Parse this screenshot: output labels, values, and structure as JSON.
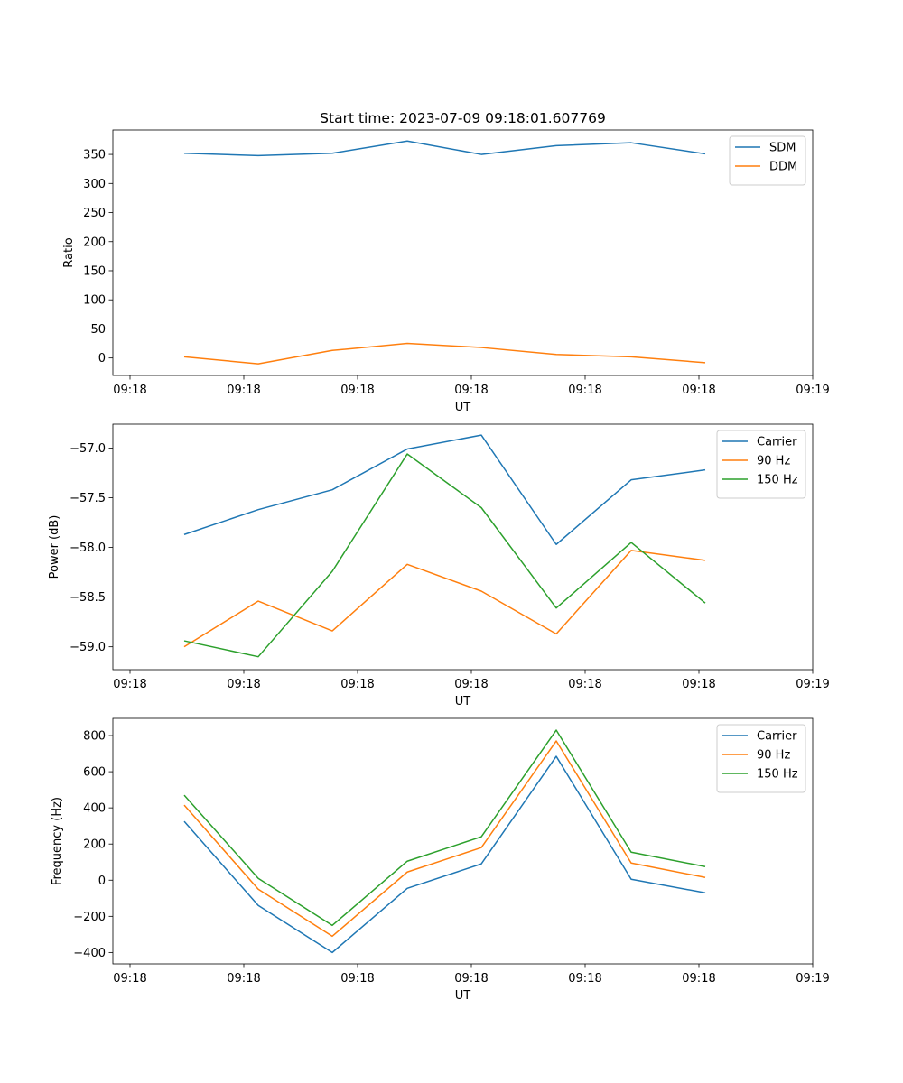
{
  "chart_data": [
    {
      "type": "line",
      "title": "Start time: 2023-07-09 09:18:01.607769",
      "xlabel": "UT",
      "ylabel": "Ratio",
      "x_tick_labels": [
        "09:18",
        "09:18",
        "09:18",
        "09:18",
        "09:18",
        "09:18",
        "09:19"
      ],
      "y_ticks": [
        0,
        50,
        100,
        150,
        200,
        250,
        300,
        350
      ],
      "y_tick_labels": [
        "0",
        "50",
        "100",
        "150",
        "200",
        "250",
        "300",
        "350"
      ],
      "ylim": [
        -30,
        392
      ],
      "legend_position": "top-right",
      "series": [
        {
          "name": "SDM",
          "color": "#1f77b4",
          "values": [
            352,
            348,
            352,
            373,
            350,
            365,
            370,
            351
          ]
        },
        {
          "name": "DDM",
          "color": "#ff7f0e",
          "values": [
            2,
            -10,
            13,
            25,
            18,
            6,
            2,
            -8
          ]
        }
      ]
    },
    {
      "type": "line",
      "title": "",
      "xlabel": "UT",
      "ylabel": "Power (dB)",
      "x_tick_labels": [
        "09:18",
        "09:18",
        "09:18",
        "09:18",
        "09:18",
        "09:18",
        "09:19"
      ],
      "y_ticks": [
        -59.0,
        -58.5,
        -58.0,
        -57.5,
        -57.0
      ],
      "y_tick_labels": [
        "−59.0",
        "−58.5",
        "−58.0",
        "−57.5",
        "−57.0"
      ],
      "ylim": [
        -59.23,
        -56.76
      ],
      "legend_position": "top-right",
      "series": [
        {
          "name": "Carrier",
          "color": "#1f77b4",
          "values": [
            -57.87,
            -57.62,
            -57.42,
            -57.01,
            -56.87,
            -57.97,
            -57.32,
            -57.22
          ]
        },
        {
          "name": "90 Hz",
          "color": "#ff7f0e",
          "values": [
            -59.0,
            -58.54,
            -58.84,
            -58.17,
            -58.44,
            -58.87,
            -58.03,
            -58.13
          ]
        },
        {
          "name": "150 Hz",
          "color": "#2ca02c",
          "values": [
            -58.94,
            -59.1,
            -58.24,
            -57.06,
            -57.6,
            -58.61,
            -57.95,
            -58.56
          ]
        }
      ]
    },
    {
      "type": "line",
      "title": "",
      "xlabel": "UT",
      "ylabel": "Frequency (Hz)",
      "x_tick_labels": [
        "09:18",
        "09:18",
        "09:18",
        "09:18",
        "09:18",
        "09:18",
        "09:19"
      ],
      "y_ticks": [
        -400,
        -200,
        0,
        200,
        400,
        600,
        800
      ],
      "y_tick_labels": [
        "−400",
        "−200",
        "0",
        "200",
        "400",
        "600",
        "800"
      ],
      "ylim": [
        -463,
        895
      ],
      "legend_position": "top-right",
      "series": [
        {
          "name": "Carrier",
          "color": "#1f77b4",
          "values": [
            325,
            -140,
            -400,
            -45,
            90,
            685,
            5,
            -70
          ]
        },
        {
          "name": "90 Hz",
          "color": "#ff7f0e",
          "values": [
            415,
            -50,
            -310,
            45,
            180,
            770,
            95,
            15
          ]
        },
        {
          "name": "150 Hz",
          "color": "#2ca02c",
          "values": [
            470,
            10,
            -250,
            105,
            240,
            830,
            155,
            75
          ]
        }
      ]
    }
  ]
}
